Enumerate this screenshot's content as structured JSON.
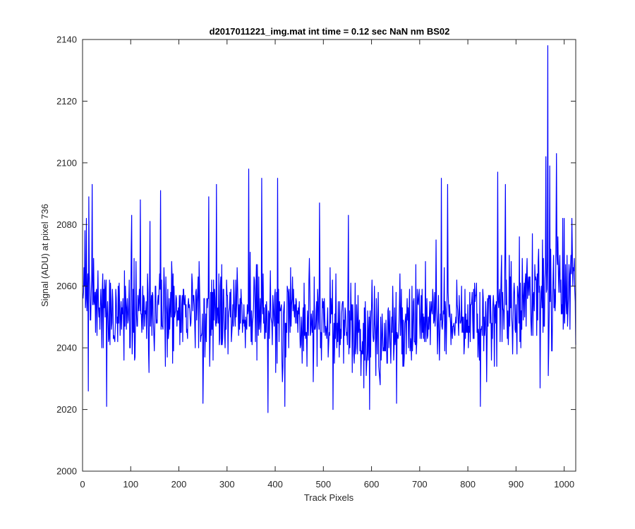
{
  "chart_data": {
    "type": "line",
    "title": "d2017011221_img.mat int time = 0.12 sec  NaN nm BS02",
    "xlabel": "Track Pixels",
    "ylabel": "Signal (ADU) at pixel 736",
    "xlim": [
      0,
      1024
    ],
    "ylim": [
      2000,
      2140
    ],
    "xticks": [
      0,
      100,
      200,
      300,
      400,
      500,
      600,
      700,
      800,
      900,
      1000
    ],
    "yticks": [
      2000,
      2020,
      2040,
      2060,
      2080,
      2100,
      2120,
      2140
    ],
    "line_color": "#0000ff",
    "grid": false,
    "box": true,
    "series": [
      {
        "x_start": 1,
        "x_step": 1,
        "noise": {
          "seed": 20170112,
          "level_knots": [
            [
              1,
              2058
            ],
            [
              10,
              2055
            ],
            [
              60,
              2050
            ],
            [
              150,
              2053
            ],
            [
              300,
              2052
            ],
            [
              450,
              2048
            ],
            [
              600,
              2045
            ],
            [
              650,
              2046
            ],
            [
              750,
              2052
            ],
            [
              850,
              2050
            ],
            [
              900,
              2054
            ],
            [
              950,
              2058
            ],
            [
              1024,
              2062
            ]
          ],
          "spread_knots": [
            [
              1,
              7.5
            ],
            [
              500,
              7.5
            ],
            [
              800,
              8
            ],
            [
              900,
              9
            ],
            [
              1024,
              10
            ]
          ],
          "clip": [
            2019,
            2103
          ]
        },
        "highlights": [
          [
            5,
            2078
          ],
          [
            8,
            2082
          ],
          [
            12,
            2026
          ],
          [
            13,
            2089
          ],
          [
            20,
            2093
          ],
          [
            50,
            2021
          ],
          [
            102,
            2083
          ],
          [
            120,
            2088
          ],
          [
            140,
            2081
          ],
          [
            162,
            2091
          ],
          [
            250,
            2022
          ],
          [
            262,
            2089
          ],
          [
            278,
            2093
          ],
          [
            345,
            2098
          ],
          [
            372,
            2095
          ],
          [
            385,
            2019
          ],
          [
            405,
            2095
          ],
          [
            420,
            2021
          ],
          [
            492,
            2087
          ],
          [
            520,
            2020
          ],
          [
            552,
            2083
          ],
          [
            596,
            2020
          ],
          [
            652,
            2022
          ],
          [
            745,
            2095
          ],
          [
            758,
            2093
          ],
          [
            826,
            2021
          ],
          [
            862,
            2097
          ],
          [
            878,
            2093
          ],
          [
            950,
            2027
          ],
          [
            962,
            2102
          ],
          [
            966,
            2138
          ],
          [
            970,
            2099
          ],
          [
            984,
            2103
          ],
          [
            1000,
            2082
          ],
          [
            1016,
            2082
          ],
          [
            1024,
            2041
          ]
        ]
      }
    ]
  }
}
